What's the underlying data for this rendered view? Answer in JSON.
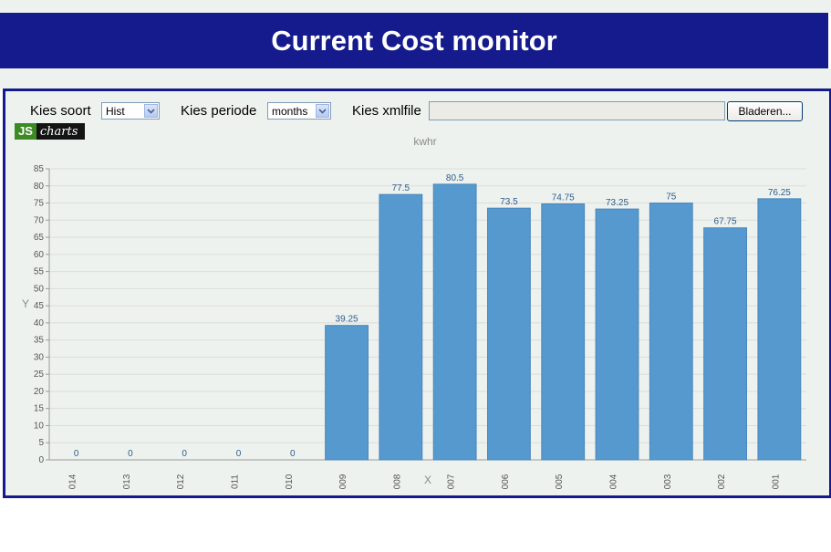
{
  "header": {
    "title": "Current Cost monitor"
  },
  "controls": {
    "soort_label": "Kies soort",
    "soort_value": "Hist",
    "periode_label": "Kies periode",
    "periode_value": "months",
    "xmlfile_label": "Kies xmlfile",
    "browse_label": "Bladeren..."
  },
  "logo": {
    "js": "JS",
    "charts": "charts"
  },
  "chart_data": {
    "type": "bar",
    "title": "kwhr",
    "xlabel": "X",
    "ylabel": "Y",
    "categories": [
      "014",
      "013",
      "012",
      "011",
      "010",
      "009",
      "008",
      "007",
      "006",
      "005",
      "004",
      "003",
      "002",
      "001"
    ],
    "values": [
      0,
      0,
      0,
      0,
      0,
      39.25,
      77.5,
      80.5,
      73.5,
      74.75,
      73.25,
      75,
      67.75,
      76.25
    ],
    "value_labels": [
      "0",
      "0",
      "0",
      "0",
      "0",
      "39.25",
      "77.5",
      "80.5",
      "73.5",
      "74.75",
      "73.25",
      "75",
      "67.75",
      "76.25"
    ],
    "ylim": [
      0,
      85
    ],
    "yticks": [
      0,
      5,
      10,
      15,
      20,
      25,
      30,
      35,
      40,
      45,
      50,
      55,
      60,
      65,
      70,
      75,
      80,
      85
    ],
    "grid": true,
    "bar_color": "#5699cf",
    "label_color": "#2e5d8c"
  }
}
